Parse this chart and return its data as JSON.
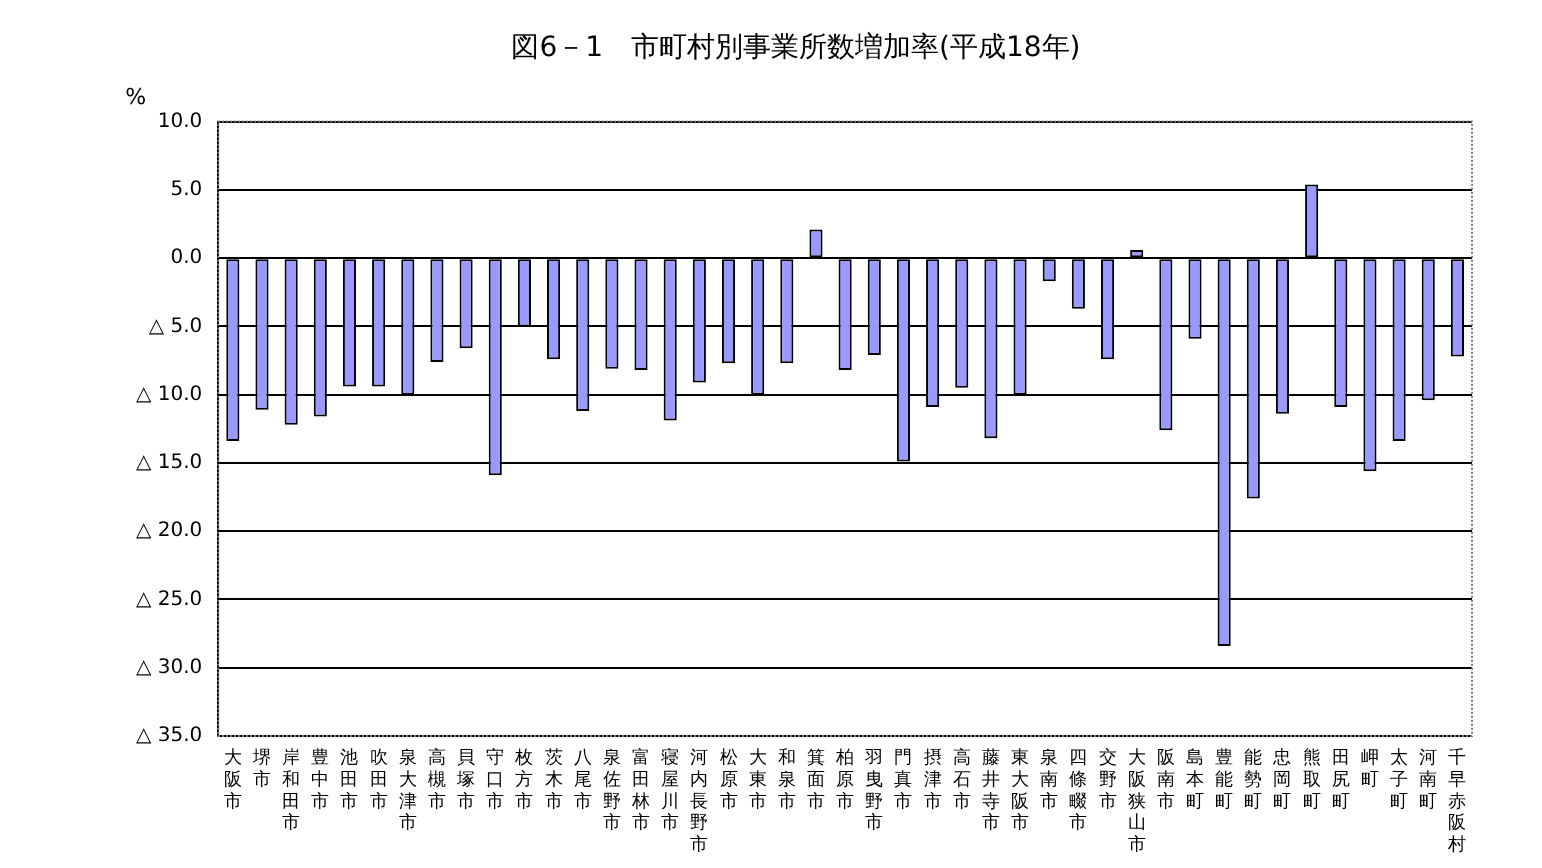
{
  "chart_data": {
    "type": "bar",
    "title": "図6－1　市町村別事業所数増加率(平成18年)",
    "ylabel": "%",
    "categories": [
      "大阪市",
      "堺市",
      "岸和田市",
      "豊中市",
      "池田市",
      "吹田市",
      "泉大津市",
      "高槻市",
      "貝塚市",
      "守口市",
      "枚方市",
      "茨木市",
      "八尾市",
      "泉佐野市",
      "富田林市",
      "寝屋川市",
      "河内長野市",
      "松原市",
      "大東市",
      "和泉市",
      "箕面市",
      "柏原市",
      "羽曳野市",
      "門真市",
      "摂津市",
      "高石市",
      "藤井寺市",
      "東大阪市",
      "泉南市",
      "四條畷市",
      "交野市",
      "大阪狭山市",
      "阪南市",
      "島本町",
      "豊能町",
      "能勢町",
      "忠岡町",
      "熊取町",
      "田尻町",
      "岬町",
      "太子町",
      "河南町",
      "千早赤阪村"
    ],
    "values": [
      -13.4,
      -11.1,
      -12.2,
      -11.6,
      -9.4,
      -9.4,
      -10.0,
      -7.6,
      -6.6,
      -15.9,
      -5.0,
      -7.4,
      -11.2,
      -8.1,
      -8.2,
      -11.9,
      -9.1,
      -7.7,
      -10.0,
      -7.7,
      2.1,
      -8.2,
      -7.1,
      -14.9,
      -10.9,
      -9.5,
      -13.2,
      -10.0,
      -1.7,
      -3.7,
      -7.4,
      0.6,
      -12.6,
      -5.9,
      -28.4,
      -17.6,
      -11.4,
      5.4,
      -10.9,
      -15.6,
      -13.4,
      -10.4,
      -7.2
    ],
    "color": "#9999ff",
    "ylim": [
      -35,
      10
    ],
    "yticks": [
      {
        "value": 10,
        "label": "10.0"
      },
      {
        "value": 5,
        "label": "5.0"
      },
      {
        "value": 0,
        "label": "0.0"
      },
      {
        "value": -5,
        "label": "△ 5.0"
      },
      {
        "value": -10,
        "label": "△ 10.0"
      },
      {
        "value": -15,
        "label": "△ 15.0"
      },
      {
        "value": -20,
        "label": "△ 20.0"
      },
      {
        "value": -25,
        "label": "△ 25.0"
      },
      {
        "value": -30,
        "label": "△ 30.0"
      },
      {
        "value": -35,
        "label": "△ 35.0"
      }
    ],
    "grid": "y",
    "legend": false
  }
}
